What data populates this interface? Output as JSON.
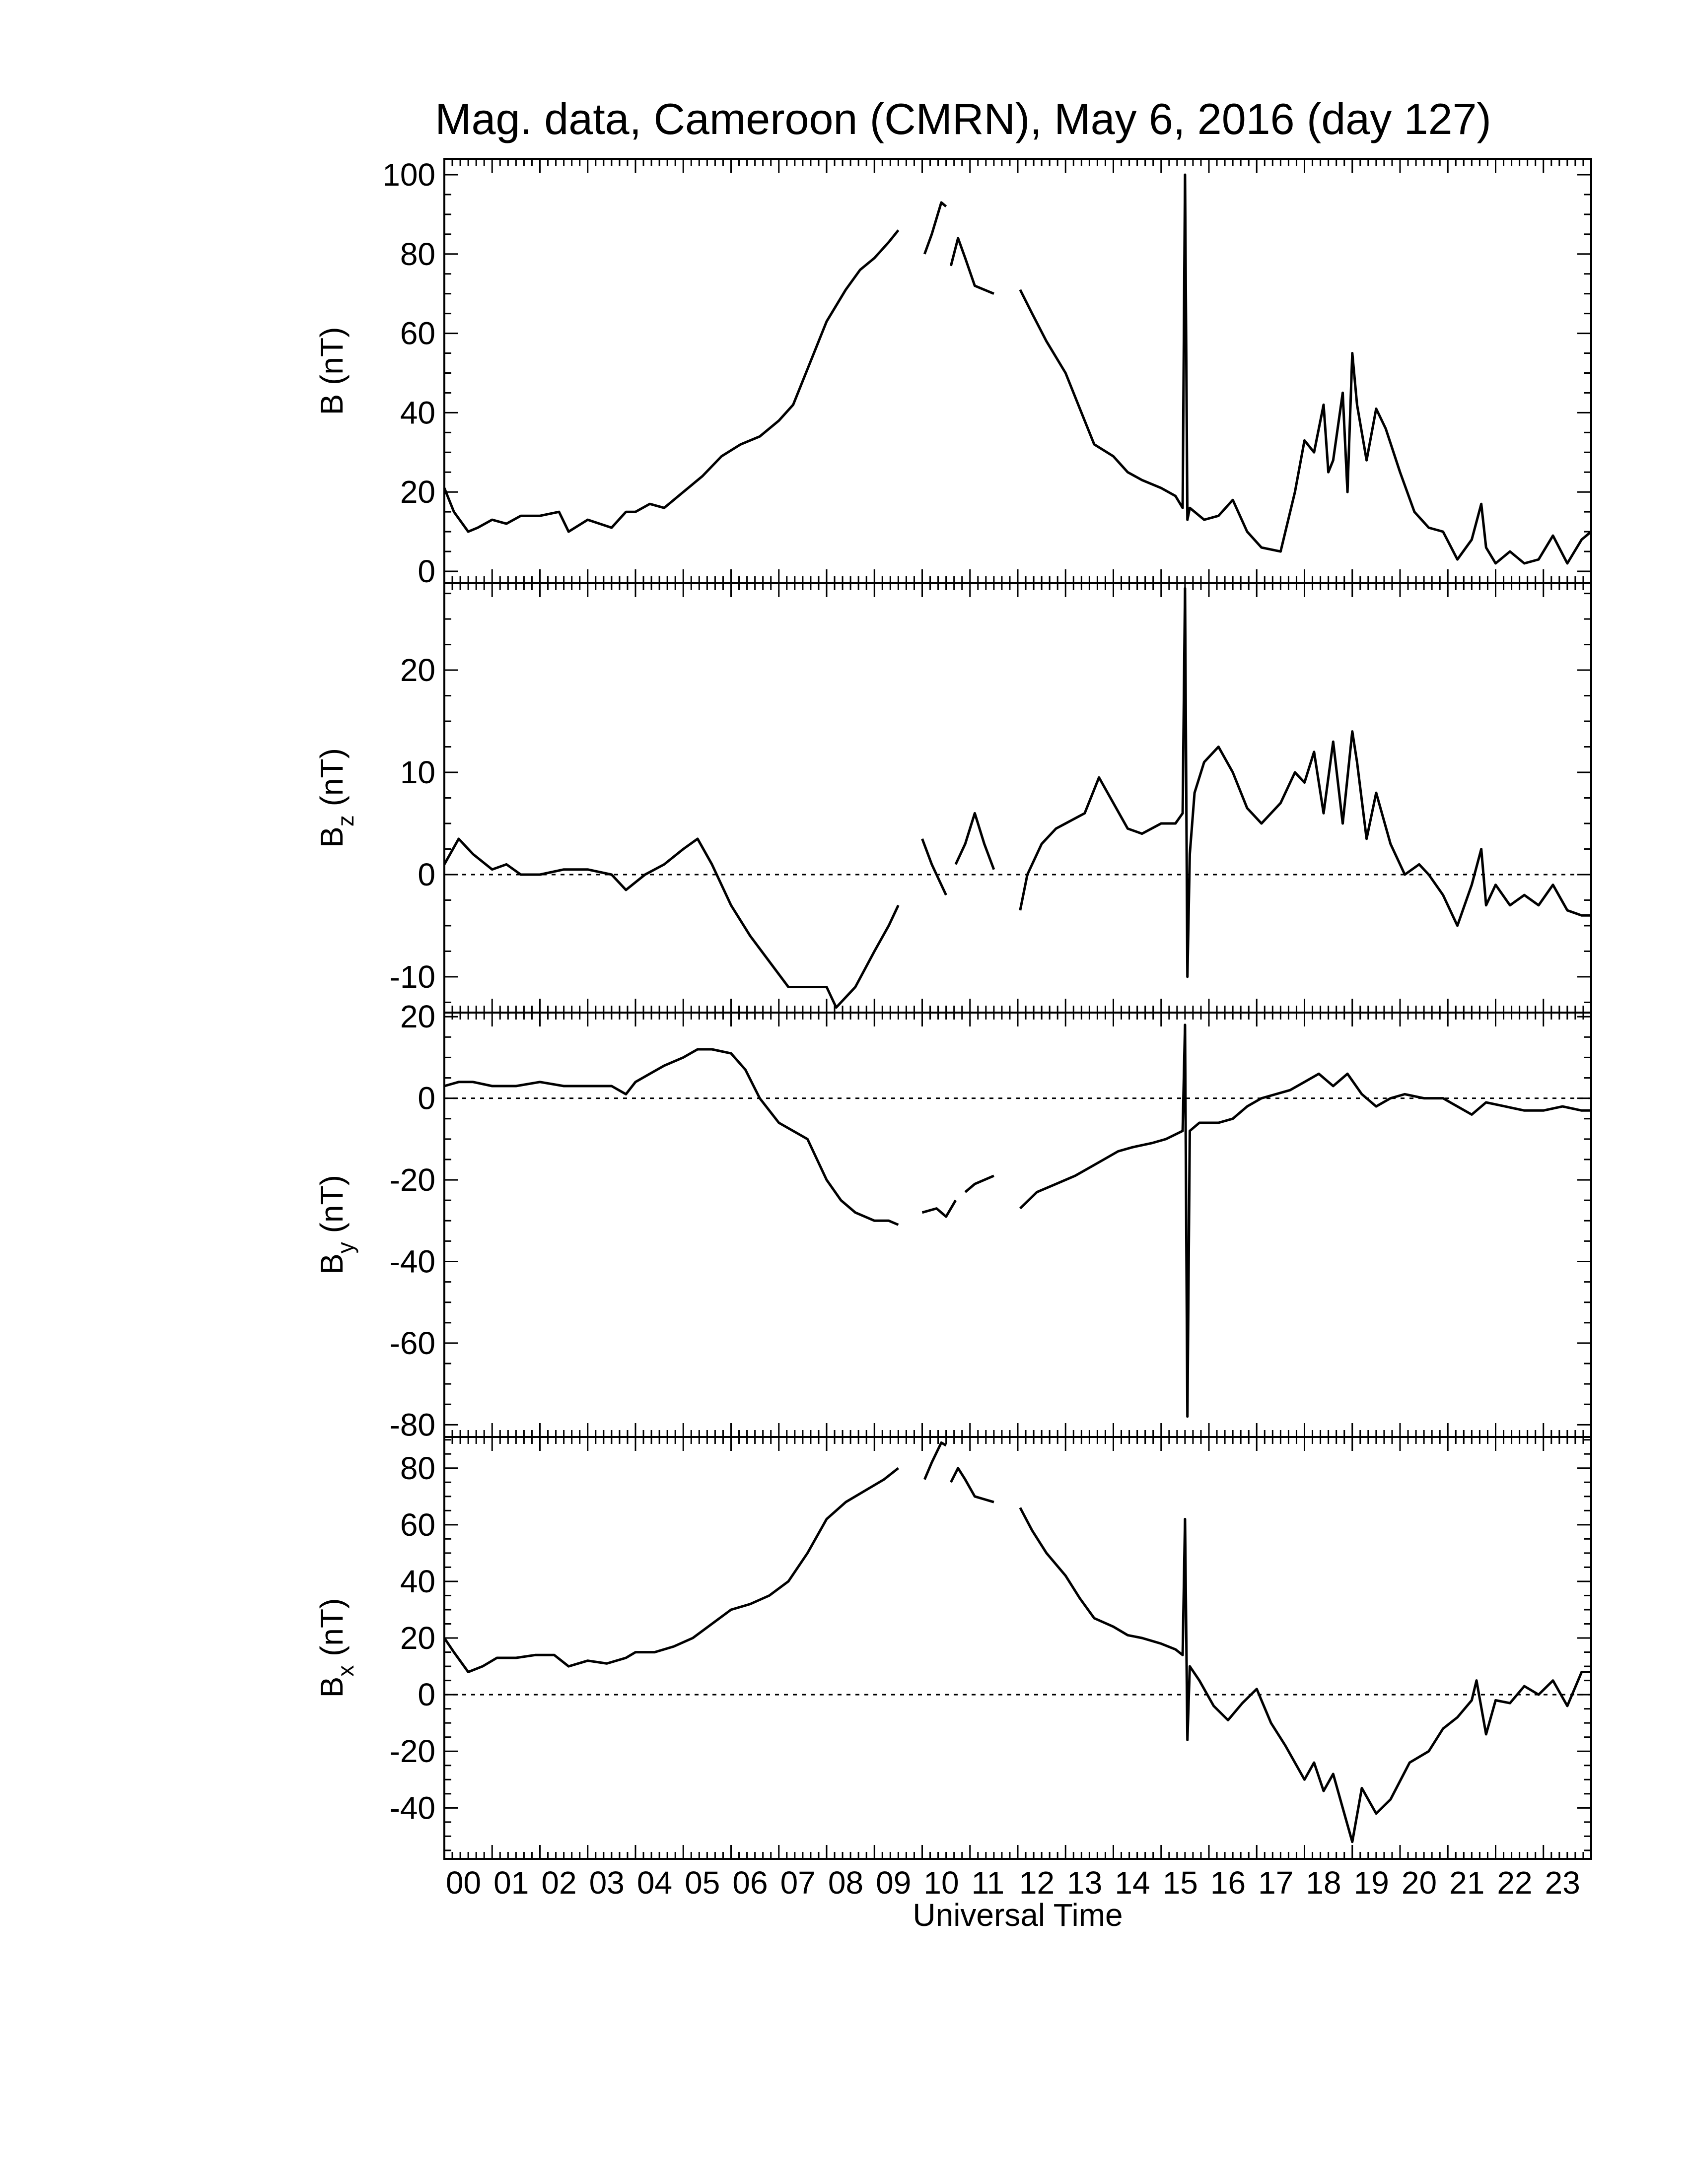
{
  "chart_data": {
    "type": "line",
    "title": "Mag. data, Cameroon (CMRN), May 6, 2016 (day 127)",
    "xlabel": "Universal Time",
    "xlim": [
      0,
      24
    ],
    "x_tick_labels": [
      "00",
      "01",
      "02",
      "03",
      "04",
      "05",
      "06",
      "07",
      "08",
      "09",
      "10",
      "11",
      "12",
      "13",
      "14",
      "15",
      "16",
      "17",
      "18",
      "19",
      "20",
      "21",
      "22",
      "23"
    ],
    "panels": [
      {
        "id": "B",
        "ylabel": "B (nT)",
        "ylabel_main": "B",
        "ylabel_sub": "",
        "ylim": [
          -3,
          104
        ],
        "yticks": [
          0,
          20,
          40,
          60,
          80,
          100
        ],
        "zero_line": false,
        "segments": [
          {
            "x": [
              0,
              0.2,
              0.5,
              0.7,
              1,
              1.3,
              1.6,
              2,
              2.4,
              2.6,
              3,
              3.5,
              3.8,
              4,
              4.3,
              4.6,
              5,
              5.4,
              5.8,
              6.2,
              6.6,
              7,
              7.3,
              7.6,
              8,
              8.4,
              8.7,
              9,
              9.3,
              9.5
            ],
            "y": [
              21,
              15,
              10,
              11,
              13,
              12,
              14,
              14,
              15,
              10,
              13,
              11,
              15,
              15,
              17,
              16,
              20,
              24,
              29,
              32,
              34,
              38,
              42,
              51,
              63,
              71,
              76,
              79,
              83,
              86
            ]
          },
          {
            "x": [
              10.05,
              10.2,
              10.4,
              10.5
            ],
            "y": [
              80,
              85,
              93,
              92
            ]
          },
          {
            "x": [
              10.6,
              10.75,
              10.9,
              11.1,
              11.3,
              11.5
            ],
            "y": [
              77,
              84,
              79,
              72,
              71,
              70
            ]
          },
          {
            "x": [
              12.05,
              12.3,
              12.6,
              13,
              13.3,
              13.6,
              14,
              14.3,
              14.6,
              15,
              15.3,
              15.45,
              15.5,
              15.55,
              15.6,
              15.9,
              16.2,
              16.5,
              16.8,
              17.1,
              17.5,
              17.8,
              18,
              18.2,
              18.4,
              18.5,
              18.6,
              18.8,
              18.9,
              19,
              19.1,
              19.3,
              19.5,
              19.7,
              20,
              20.3,
              20.6,
              20.9,
              21.2,
              21.5,
              21.7,
              21.8,
              22,
              22.3,
              22.6,
              22.9,
              23.2,
              23.5,
              23.8,
              24
            ],
            "y": [
              71,
              65,
              58,
              50,
              41,
              32,
              29,
              25,
              23,
              21,
              19,
              16,
              100,
              13,
              16,
              13,
              14,
              18,
              10,
              6,
              5,
              20,
              33,
              30,
              42,
              25,
              28,
              45,
              20,
              55,
              42,
              28,
              41,
              36,
              25,
              15,
              11,
              10,
              3,
              8,
              17,
              6,
              2,
              5,
              2,
              3,
              9,
              2,
              8,
              10
            ]
          }
        ]
      },
      {
        "id": "Bz",
        "ylabel": "Bz (nT)",
        "ylabel_main": "B",
        "ylabel_sub": "z",
        "ylim": [
          -13.5,
          28.5
        ],
        "yticks": [
          -10,
          0,
          10,
          20
        ],
        "zero_line": true,
        "segments": [
          {
            "x": [
              0,
              0.3,
              0.6,
              1,
              1.3,
              1.6,
              2,
              2.5,
              3,
              3.5,
              3.8,
              4.2,
              4.6,
              5,
              5.3,
              5.6,
              6,
              6.4,
              6.8,
              7.2,
              7.6,
              8,
              8.2,
              8.6,
              9,
              9.3,
              9.5
            ],
            "y": [
              1,
              3.5,
              2,
              0.5,
              1,
              0,
              0,
              0.5,
              0.5,
              0,
              -1.5,
              0,
              1,
              2.5,
              3.5,
              1,
              -3,
              -6,
              -8.5,
              -11,
              -11,
              -11,
              -13,
              -11,
              -7.5,
              -5,
              -3
            ]
          },
          {
            "x": [
              10,
              10.2,
              10.4,
              10.5
            ],
            "y": [
              3.5,
              1,
              -1,
              -2
            ]
          },
          {
            "x": [
              10.7,
              10.9,
              11.1,
              11.3,
              11.5
            ],
            "y": [
              1,
              3,
              6,
              3,
              0.5
            ]
          },
          {
            "x": [
              12.05,
              12.2,
              12.5,
              12.8,
              13,
              13.4,
              13.7,
              14,
              14.3,
              14.6,
              15,
              15.3,
              15.45,
              15.5,
              15.55,
              15.6,
              15.7,
              15.9,
              16.2,
              16.5,
              16.8,
              17.1,
              17.5,
              17.8,
              18,
              18.2,
              18.4,
              18.6,
              18.8,
              19,
              19.1,
              19.3,
              19.5,
              19.8,
              20.1,
              20.4,
              20.6,
              20.9,
              21.2,
              21.5,
              21.7,
              21.8,
              22,
              22.3,
              22.6,
              22.9,
              23.2,
              23.5,
              23.8,
              24
            ],
            "y": [
              -3.5,
              0,
              3,
              4.5,
              5,
              6,
              9.5,
              7,
              4.5,
              4,
              5,
              5,
              6,
              28,
              -10,
              2,
              8,
              11,
              12.5,
              10,
              6.5,
              5,
              7,
              10,
              9,
              12,
              6,
              13,
              5,
              14,
              11,
              3.5,
              8,
              3,
              0,
              1,
              0,
              -2,
              -5,
              -1,
              2.5,
              -3,
              -1,
              -3,
              -2,
              -3,
              -1,
              -3.5,
              -4,
              -4
            ]
          }
        ]
      },
      {
        "id": "By",
        "ylabel": "By (nT)",
        "ylabel_main": "B",
        "ylabel_sub": "y",
        "ylim": [
          -83,
          21
        ],
        "yticks": [
          -80,
          -60,
          -40,
          -20,
          0,
          20
        ],
        "zero_line": true,
        "segments": [
          {
            "x": [
              0,
              0.3,
              0.6,
              1,
              1.5,
              2,
              2.5,
              3,
              3.5,
              3.8,
              4,
              4.3,
              4.6,
              5,
              5.3,
              5.6,
              6,
              6.3,
              6.6,
              7,
              7.3,
              7.6,
              8,
              8.3,
              8.6,
              9,
              9.3,
              9.5
            ],
            "y": [
              3,
              4,
              4,
              3,
              3,
              4,
              3,
              3,
              3,
              1,
              4,
              6,
              8,
              10,
              12,
              12,
              11,
              7,
              0,
              -6,
              -8,
              -10,
              -20,
              -25,
              -28,
              -30,
              -30,
              -31
            ]
          },
          {
            "x": [
              10,
              10.3,
              10.5,
              10.7
            ],
            "y": [
              -28,
              -27,
              -29,
              -25
            ]
          },
          {
            "x": [
              10.9,
              11.1,
              11.3,
              11.5
            ],
            "y": [
              -23,
              -21,
              -20,
              -19
            ]
          },
          {
            "x": [
              12.05,
              12.4,
              12.8,
              13.2,
              13.5,
              13.8,
              14.1,
              14.4,
              14.8,
              15.1,
              15.45,
              15.5,
              15.55,
              15.6,
              15.8,
              16.2,
              16.5,
              16.8,
              17.1,
              17.4,
              17.7,
              18,
              18.3,
              18.6,
              18.9,
              19.2,
              19.5,
              19.8,
              20.1,
              20.5,
              20.9,
              21.2,
              21.5,
              21.8,
              22.2,
              22.6,
              23,
              23.4,
              23.8,
              24
            ],
            "y": [
              -27,
              -23,
              -21,
              -19,
              -17,
              -15,
              -13,
              -12,
              -11,
              -10,
              -8,
              18,
              -78,
              -8,
              -6,
              -6,
              -5,
              -2,
              0,
              1,
              2,
              4,
              6,
              3,
              6,
              1,
              -2,
              0,
              1,
              0,
              0,
              -2,
              -4,
              -1,
              -2,
              -3,
              -3,
              -2,
              -3,
              -3
            ]
          }
        ]
      },
      {
        "id": "Bx",
        "ylabel": "Bx (nT)",
        "ylabel_main": "B",
        "ylabel_sub": "x",
        "ylim": [
          -58,
          91
        ],
        "yticks": [
          -40,
          -20,
          0,
          20,
          40,
          60,
          80
        ],
        "zero_line": true,
        "segments": [
          {
            "x": [
              0,
              0.2,
              0.5,
              0.8,
              1.1,
              1.5,
              1.9,
              2.3,
              2.6,
              3,
              3.4,
              3.8,
              4,
              4.4,
              4.8,
              5.2,
              5.6,
              6,
              6.4,
              6.8,
              7.2,
              7.6,
              8,
              8.4,
              8.8,
              9.2,
              9.5
            ],
            "y": [
              20,
              15,
              8,
              10,
              13,
              13,
              14,
              14,
              10,
              12,
              11,
              13,
              15,
              15,
              17,
              20,
              25,
              30,
              32,
              35,
              40,
              50,
              62,
              68,
              72,
              76,
              80
            ]
          },
          {
            "x": [
              10.05,
              10.2,
              10.4,
              10.5
            ],
            "y": [
              76,
              82,
              89,
              88
            ]
          },
          {
            "x": [
              10.6,
              10.75,
              10.9,
              11.1,
              11.3,
              11.5
            ],
            "y": [
              75,
              80,
              76,
              70,
              69,
              68
            ]
          },
          {
            "x": [
              12.05,
              12.3,
              12.6,
              13,
              13.3,
              13.6,
              14,
              14.3,
              14.6,
              15,
              15.3,
              15.45,
              15.5,
              15.55,
              15.6,
              15.8,
              16.1,
              16.4,
              16.7,
              17,
              17.3,
              17.6,
              18,
              18.2,
              18.4,
              18.6,
              18.8,
              19,
              19.2,
              19.5,
              19.8,
              20.2,
              20.6,
              20.9,
              21.2,
              21.5,
              21.6,
              21.8,
              22,
              22.3,
              22.6,
              22.9,
              23.2,
              23.5,
              23.8,
              24
            ],
            "y": [
              66,
              58,
              50,
              42,
              34,
              27,
              24,
              21,
              20,
              18,
              16,
              14,
              62,
              -16,
              10,
              5,
              -4,
              -9,
              -3,
              2,
              -10,
              -18,
              -30,
              -24,
              -34,
              -28,
              -40,
              -52,
              -33,
              -42,
              -37,
              -24,
              -20,
              -12,
              -8,
              -2,
              5,
              -14,
              -2,
              -3,
              3,
              0,
              5,
              -4,
              8,
              8
            ]
          }
        ]
      }
    ]
  }
}
